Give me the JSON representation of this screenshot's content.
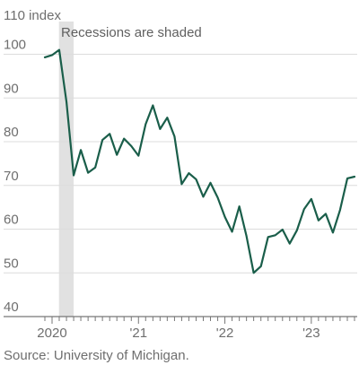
{
  "chart_data": {
    "type": "line",
    "title": "",
    "ylabel": "110 index",
    "xlabel": "",
    "ylim": [
      40,
      110
    ],
    "yticks": [
      40,
      50,
      60,
      70,
      80,
      90,
      100
    ],
    "xlim": [
      2019.917,
      2023.5
    ],
    "xtick_labels": [
      {
        "value": 2020.0,
        "label": "2020"
      },
      {
        "value": 2021.0,
        "label": "'21"
      },
      {
        "value": 2022.0,
        "label": "'22"
      },
      {
        "value": 2023.0,
        "label": "'23"
      }
    ],
    "grid": true,
    "annotation": "Recessions are shaded",
    "recession_shading": [
      {
        "start": 2020.08,
        "end": 2020.25
      }
    ],
    "series": [
      {
        "name": "",
        "color": "#1a5e4a",
        "x": [
          2019.917,
          2020.0,
          2020.083,
          2020.167,
          2020.25,
          2020.333,
          2020.417,
          2020.5,
          2020.583,
          2020.667,
          2020.75,
          2020.833,
          2020.917,
          2021.0,
          2021.083,
          2021.167,
          2021.25,
          2021.333,
          2021.417,
          2021.5,
          2021.583,
          2021.667,
          2021.75,
          2021.833,
          2021.917,
          2022.0,
          2022.083,
          2022.167,
          2022.25,
          2022.333,
          2022.417,
          2022.5,
          2022.583,
          2022.667,
          2022.75,
          2022.833,
          2022.917,
          2023.0,
          2023.083,
          2023.167,
          2023.25,
          2023.333,
          2023.417,
          2023.5
        ],
        "values": [
          99.3,
          99.8,
          101.0,
          89.1,
          72.3,
          78.1,
          72.9,
          74.1,
          80.4,
          81.8,
          77.0,
          80.7,
          79.0,
          76.8,
          84.0,
          88.3,
          82.9,
          85.5,
          81.2,
          70.3,
          72.8,
          71.4,
          67.4,
          70.6,
          67.2,
          62.8,
          59.4,
          65.2,
          58.4,
          50.0,
          51.5,
          58.2,
          58.6,
          59.9,
          56.7,
          59.7,
          64.6,
          66.9,
          62.0,
          63.5,
          59.2,
          64.4,
          71.6,
          72.0
        ]
      }
    ]
  },
  "source": "Source: University of Michigan."
}
